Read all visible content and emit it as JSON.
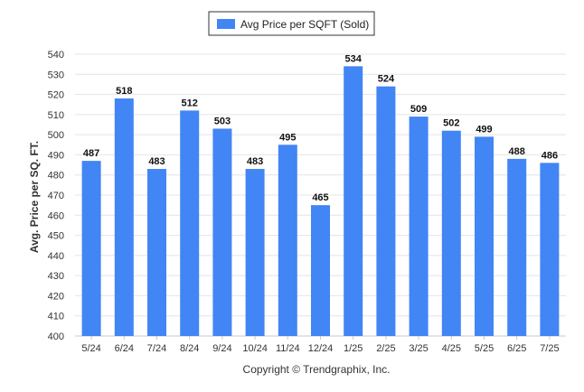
{
  "colors": {
    "bar": "#4285f4"
  },
  "chart_data": {
    "type": "bar",
    "categories": [
      "5/24",
      "6/24",
      "7/24",
      "8/24",
      "9/24",
      "10/24",
      "11/24",
      "12/24",
      "1/25",
      "2/25",
      "3/25",
      "4/25",
      "5/25",
      "6/25",
      "7/25"
    ],
    "series": [
      {
        "name": "Avg Price per SQFT (Sold)",
        "values": [
          487,
          518,
          483,
          512,
          503,
          483,
          495,
          465,
          534,
          524,
          509,
          502,
          499,
          488,
          486
        ]
      }
    ],
    "ylabel": "Avg. Price per SQ. FT.",
    "xlabel": "",
    "ylim": [
      400,
      540
    ],
    "yticks": [
      400,
      410,
      420,
      430,
      440,
      450,
      460,
      470,
      480,
      490,
      500,
      510,
      520,
      530,
      540
    ],
    "grid": true,
    "legend_position": "top-center",
    "data_labels": true
  },
  "footer": {
    "copyright": "Copyright © Trendgraphix, Inc."
  }
}
